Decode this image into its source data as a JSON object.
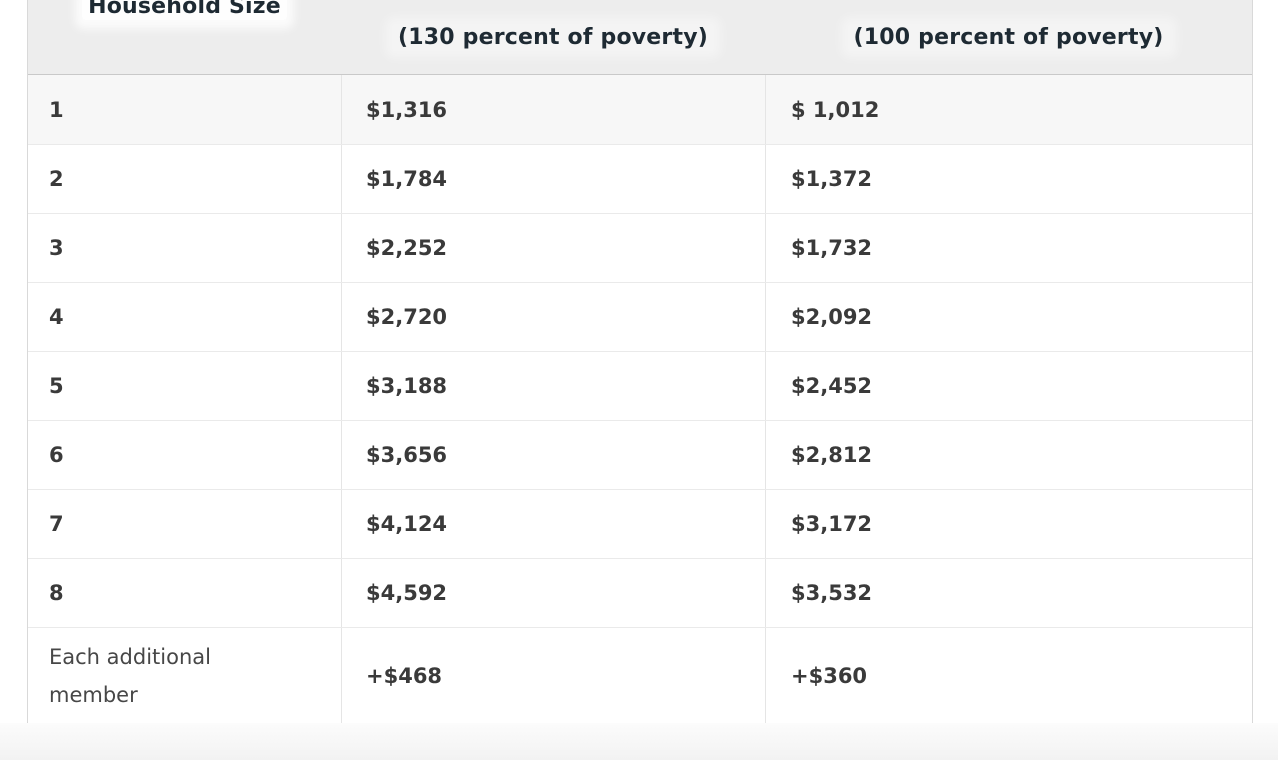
{
  "table": {
    "header": {
      "col1": "Household Size",
      "col2": "(130 percent of poverty)",
      "col3": "(100 percent of poverty)"
    },
    "rows": [
      {
        "size": "1",
        "col130": "$1,316",
        "col100": "$ 1,012"
      },
      {
        "size": "2",
        "col130": "$1,784",
        "col100": "$1,372"
      },
      {
        "size": "3",
        "col130": "$2,252",
        "col100": "$1,732"
      },
      {
        "size": "4",
        "col130": "$2,720",
        "col100": "$2,092"
      },
      {
        "size": "5",
        "col130": "$3,188",
        "col100": "$2,452"
      },
      {
        "size": "6",
        "col130": "$3,656",
        "col100": "$2,812"
      },
      {
        "size": "7",
        "col130": "$4,124",
        "col100": "$3,172"
      },
      {
        "size": "8",
        "col130": "$4,592",
        "col100": "$3,532"
      },
      {
        "size": "Each additional member",
        "col130": "+$468",
        "col100": "+$360"
      }
    ]
  },
  "chart_data": {
    "type": "table",
    "title": "",
    "columns": [
      "Household Size",
      "(130 percent of poverty)",
      "(100 percent of poverty)"
    ],
    "rows": [
      [
        "1",
        "$1,316",
        "$ 1,012"
      ],
      [
        "2",
        "$1,784",
        "$1,372"
      ],
      [
        "3",
        "$2,252",
        "$1,732"
      ],
      [
        "4",
        "$2,720",
        "$2,092"
      ],
      [
        "5",
        "$3,188",
        "$2,452"
      ],
      [
        "6",
        "$3,656",
        "$2,812"
      ],
      [
        "7",
        "$4,124",
        "$3,172"
      ],
      [
        "8",
        "$4,592",
        "$3,532"
      ],
      [
        "Each additional member",
        "+$468",
        "+$360"
      ]
    ],
    "values_130_percent": [
      1316,
      1784,
      2252,
      2720,
      3188,
      3656,
      4124,
      4592
    ],
    "values_100_percent": [
      1012,
      1372,
      1732,
      2092,
      2452,
      2812,
      3172,
      3532
    ],
    "additional_member_130": 468,
    "additional_member_100": 360
  },
  "colors": {
    "header_bg": "#ededed",
    "first_row_bg": "#f7f7f7",
    "header_text": "#1e2a33",
    "body_text": "#3a3a3a",
    "outer_border": "#d9d9d9",
    "row_divider": "#eaeaea",
    "column_divider": "#e5e5e5",
    "below_table_bg": "#f5f5f5"
  }
}
